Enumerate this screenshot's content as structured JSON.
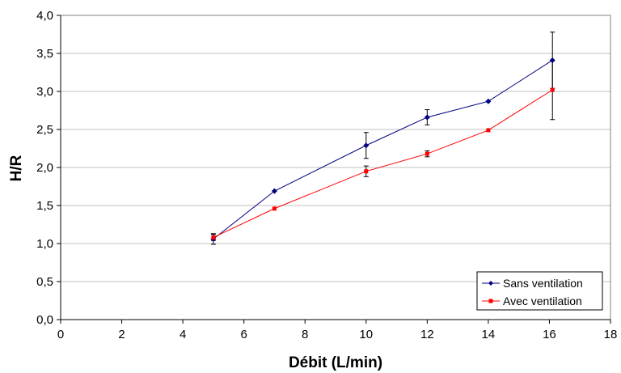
{
  "chart_data": {
    "type": "line",
    "xlabel": "Débit (L/min)",
    "ylabel": "H/R",
    "xlim": [
      0,
      18
    ],
    "ylim": [
      0,
      4
    ],
    "x_ticks": [
      "0",
      "2",
      "4",
      "6",
      "8",
      "10",
      "12",
      "14",
      "16",
      "18"
    ],
    "y_ticks": [
      "0,0",
      "0,5",
      "1,0",
      "1,5",
      "2,0",
      "2,5",
      "3,0",
      "3,5",
      "4,0"
    ],
    "grid": "horizontal",
    "legend_position": "bottom-right",
    "series": [
      {
        "name": "Sans ventilation",
        "color": "#000080",
        "marker": "diamond",
        "x": [
          5,
          7,
          10,
          12,
          14,
          16.1
        ],
        "y": [
          1.06,
          1.69,
          2.29,
          2.66,
          2.87,
          3.41
        ],
        "error": [
          0.07,
          0,
          0.17,
          0.1,
          0,
          0.37
        ]
      },
      {
        "name": "Avec ventilation",
        "color": "#ff0000",
        "marker": "square",
        "x": [
          5,
          7,
          10,
          12,
          14,
          16.1
        ],
        "y": [
          1.08,
          1.46,
          1.95,
          2.18,
          2.49,
          3.02
        ],
        "error": [
          0.04,
          0,
          0.07,
          0.04,
          0,
          0.39
        ]
      }
    ]
  }
}
